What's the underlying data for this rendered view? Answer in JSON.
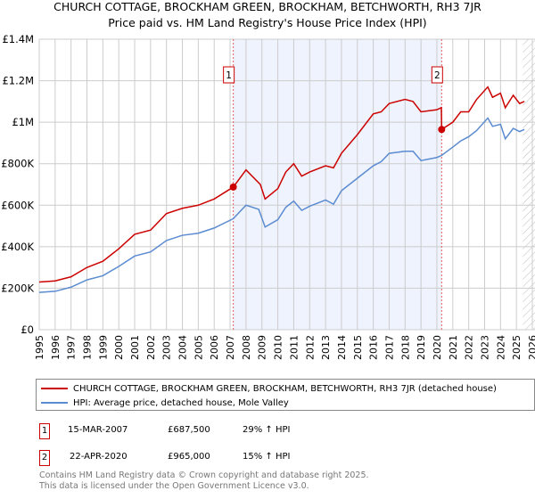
{
  "chart_data": {
    "type": "line",
    "title": "CHURCH COTTAGE, BROCKHAM GREEN, BROCKHAM, BETCHWORTH, RH3 7JR",
    "subtitle": "Price paid vs. HM Land Registry's House Price Index (HPI)",
    "xlim": [
      1995,
      2026
    ],
    "ylim": [
      0,
      1400000
    ],
    "x_ticks": [
      "1995",
      "1996",
      "1997",
      "1998",
      "1999",
      "2000",
      "2001",
      "2002",
      "2003",
      "2004",
      "2005",
      "2006",
      "2007",
      "2008",
      "2009",
      "2010",
      "2011",
      "2012",
      "2013",
      "2014",
      "2015",
      "2016",
      "2017",
      "2018",
      "2019",
      "2020",
      "2021",
      "2022",
      "2023",
      "2024",
      "2025",
      "2026"
    ],
    "y_ticks": [
      {
        "v": 0,
        "label": "£0"
      },
      {
        "v": 200000,
        "label": "£200K"
      },
      {
        "v": 400000,
        "label": "£400K"
      },
      {
        "v": 600000,
        "label": "£600K"
      },
      {
        "v": 800000,
        "label": "£800K"
      },
      {
        "v": 1000000,
        "label": "£1M"
      },
      {
        "v": 1200000,
        "label": "£1.2M"
      },
      {
        "v": 1400000,
        "label": "£1.4M"
      }
    ],
    "grid": true,
    "shaded_period": [
      2007.2,
      2020.3
    ],
    "hatched_after": 2025.4,
    "series": [
      {
        "name": "CHURCH COTTAGE, BROCKHAM GREEN, BROCKHAM, BETCHWORTH, RH3 7JR (detached house)",
        "color": "#cc0000",
        "x": [
          1995,
          1996,
          1997,
          1998,
          1999,
          2000,
          2001,
          2002,
          2003,
          2004,
          2005,
          2006,
          2007.2,
          2008,
          2008.9,
          2009.2,
          2010,
          2010.5,
          2011,
          2011.5,
          2012,
          2013,
          2013.5,
          2014,
          2015,
          2016,
          2016.5,
          2017,
          2018,
          2018.5,
          2019,
          2020,
          2020.28,
          2020.3,
          2021,
          2021.5,
          2022,
          2022.5,
          2023.2,
          2023.5,
          2024,
          2024.3,
          2024.8,
          2025.2,
          2025.5
        ],
        "y": [
          230000,
          235000,
          255000,
          300000,
          330000,
          390000,
          460000,
          480000,
          560000,
          585000,
          600000,
          630000,
          687500,
          770000,
          700000,
          630000,
          680000,
          760000,
          800000,
          740000,
          760000,
          790000,
          780000,
          850000,
          940000,
          1040000,
          1050000,
          1090000,
          1110000,
          1100000,
          1050000,
          1060000,
          1070000,
          965000,
          1000000,
          1050000,
          1050000,
          1110000,
          1170000,
          1120000,
          1140000,
          1070000,
          1130000,
          1090000,
          1100000
        ]
      },
      {
        "name": "HPI: Average price, detached house, Mole Valley",
        "color": "#5b8bd0",
        "x": [
          1995,
          1996,
          1997,
          1998,
          1999,
          2000,
          2001,
          2002,
          2003,
          2004,
          2005,
          2006,
          2007.2,
          2008,
          2008.8,
          2009.2,
          2010,
          2010.5,
          2011,
          2011.5,
          2012,
          2013,
          2013.5,
          2014,
          2015,
          2016,
          2016.5,
          2017,
          2018,
          2018.5,
          2019,
          2020,
          2020.3,
          2021,
          2021.5,
          2022,
          2022.5,
          2023.2,
          2023.5,
          2024,
          2024.3,
          2024.8,
          2025.2,
          2025.5
        ],
        "y": [
          180000,
          185000,
          205000,
          240000,
          260000,
          305000,
          355000,
          375000,
          430000,
          455000,
          465000,
          490000,
          535000,
          600000,
          580000,
          495000,
          530000,
          590000,
          620000,
          575000,
          595000,
          625000,
          605000,
          670000,
          730000,
          790000,
          810000,
          850000,
          860000,
          860000,
          815000,
          830000,
          840000,
          880000,
          910000,
          930000,
          960000,
          1020000,
          980000,
          990000,
          920000,
          970000,
          955000,
          965000
        ]
      }
    ],
    "sales": [
      {
        "num": "1",
        "x": 2007.2,
        "y": 687500,
        "date": "15-MAR-2007",
        "price": "£687,500",
        "hpi": "29% ↑ HPI"
      },
      {
        "num": "2",
        "x": 2020.3,
        "y": 965000,
        "date": "22-APR-2020",
        "price": "£965,000",
        "hpi": "15% ↑ HPI"
      }
    ]
  },
  "footer": {
    "line1": "Contains HM Land Registry data © Crown copyright and database right 2025.",
    "line2": "This data is licensed under the Open Government Licence v3.0."
  }
}
